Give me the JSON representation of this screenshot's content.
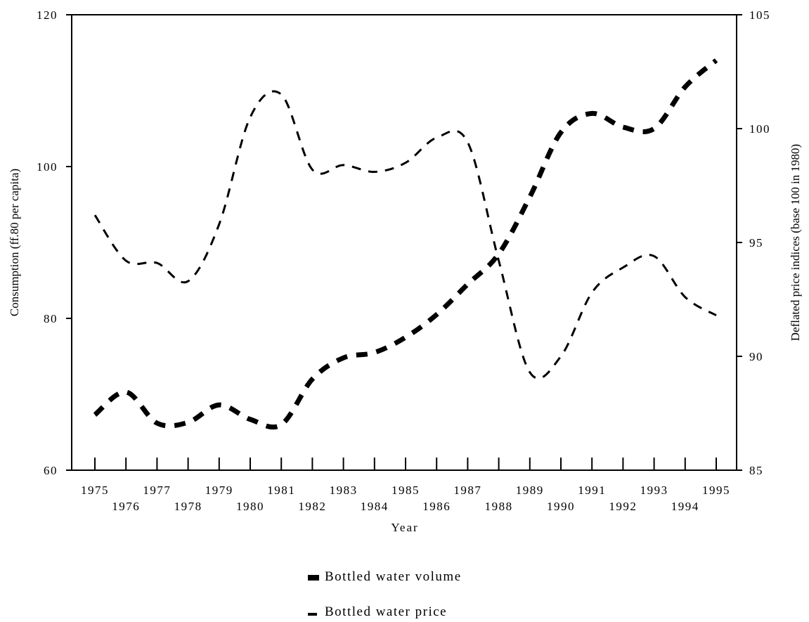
{
  "chart_data": {
    "type": "line",
    "title": "",
    "xlabel": "Year",
    "ylabel_left": "Consumption (ff.80 per capita)",
    "ylabel_right": "Deflated price indices (base 100 in 1980)",
    "x": [
      1975,
      1976,
      1977,
      1978,
      1979,
      1980,
      1981,
      1982,
      1983,
      1984,
      1985,
      1986,
      1987,
      1988,
      1989,
      1990,
      1991,
      1992,
      1993,
      1994,
      1995
    ],
    "x_tick_labels_upper": [
      "1975",
      "1977",
      "1979",
      "1981",
      "1983",
      "1985",
      "1987",
      "1989",
      "1991",
      "1993",
      "1995"
    ],
    "x_tick_labels_lower": [
      "1976",
      "1978",
      "1980",
      "1982",
      "1984",
      "1986",
      "1988",
      "1990",
      "1992",
      "1994"
    ],
    "ylim_left": [
      60,
      120
    ],
    "yticks_left": [
      "60",
      "80",
      "100",
      "120"
    ],
    "ylim_right": [
      85,
      105
    ],
    "yticks_right": [
      "85",
      "90",
      "95",
      "100",
      "105"
    ],
    "grid": false,
    "legend_position": "bottom-center",
    "series": [
      {
        "name": "Bottled water volume",
        "axis": "left",
        "style": "thick-dash",
        "values": [
          67.3,
          70.3,
          66.2,
          66.3,
          68.6,
          66.7,
          66.0,
          72.0,
          74.8,
          75.5,
          77.5,
          80.5,
          84.5,
          88.5,
          96.0,
          104.5,
          107.0,
          105.2,
          105.0,
          110.5,
          114.0
        ]
      },
      {
        "name": "Bottled water price",
        "axis": "right",
        "style": "thin-dash",
        "values": [
          96.2,
          94.2,
          94.1,
          93.3,
          95.8,
          100.5,
          101.5,
          98.2,
          98.4,
          98.1,
          98.5,
          99.6,
          99.4,
          94.2,
          89.3,
          90.0,
          92.8,
          93.9,
          94.4,
          92.6,
          91.8
        ]
      }
    ]
  }
}
